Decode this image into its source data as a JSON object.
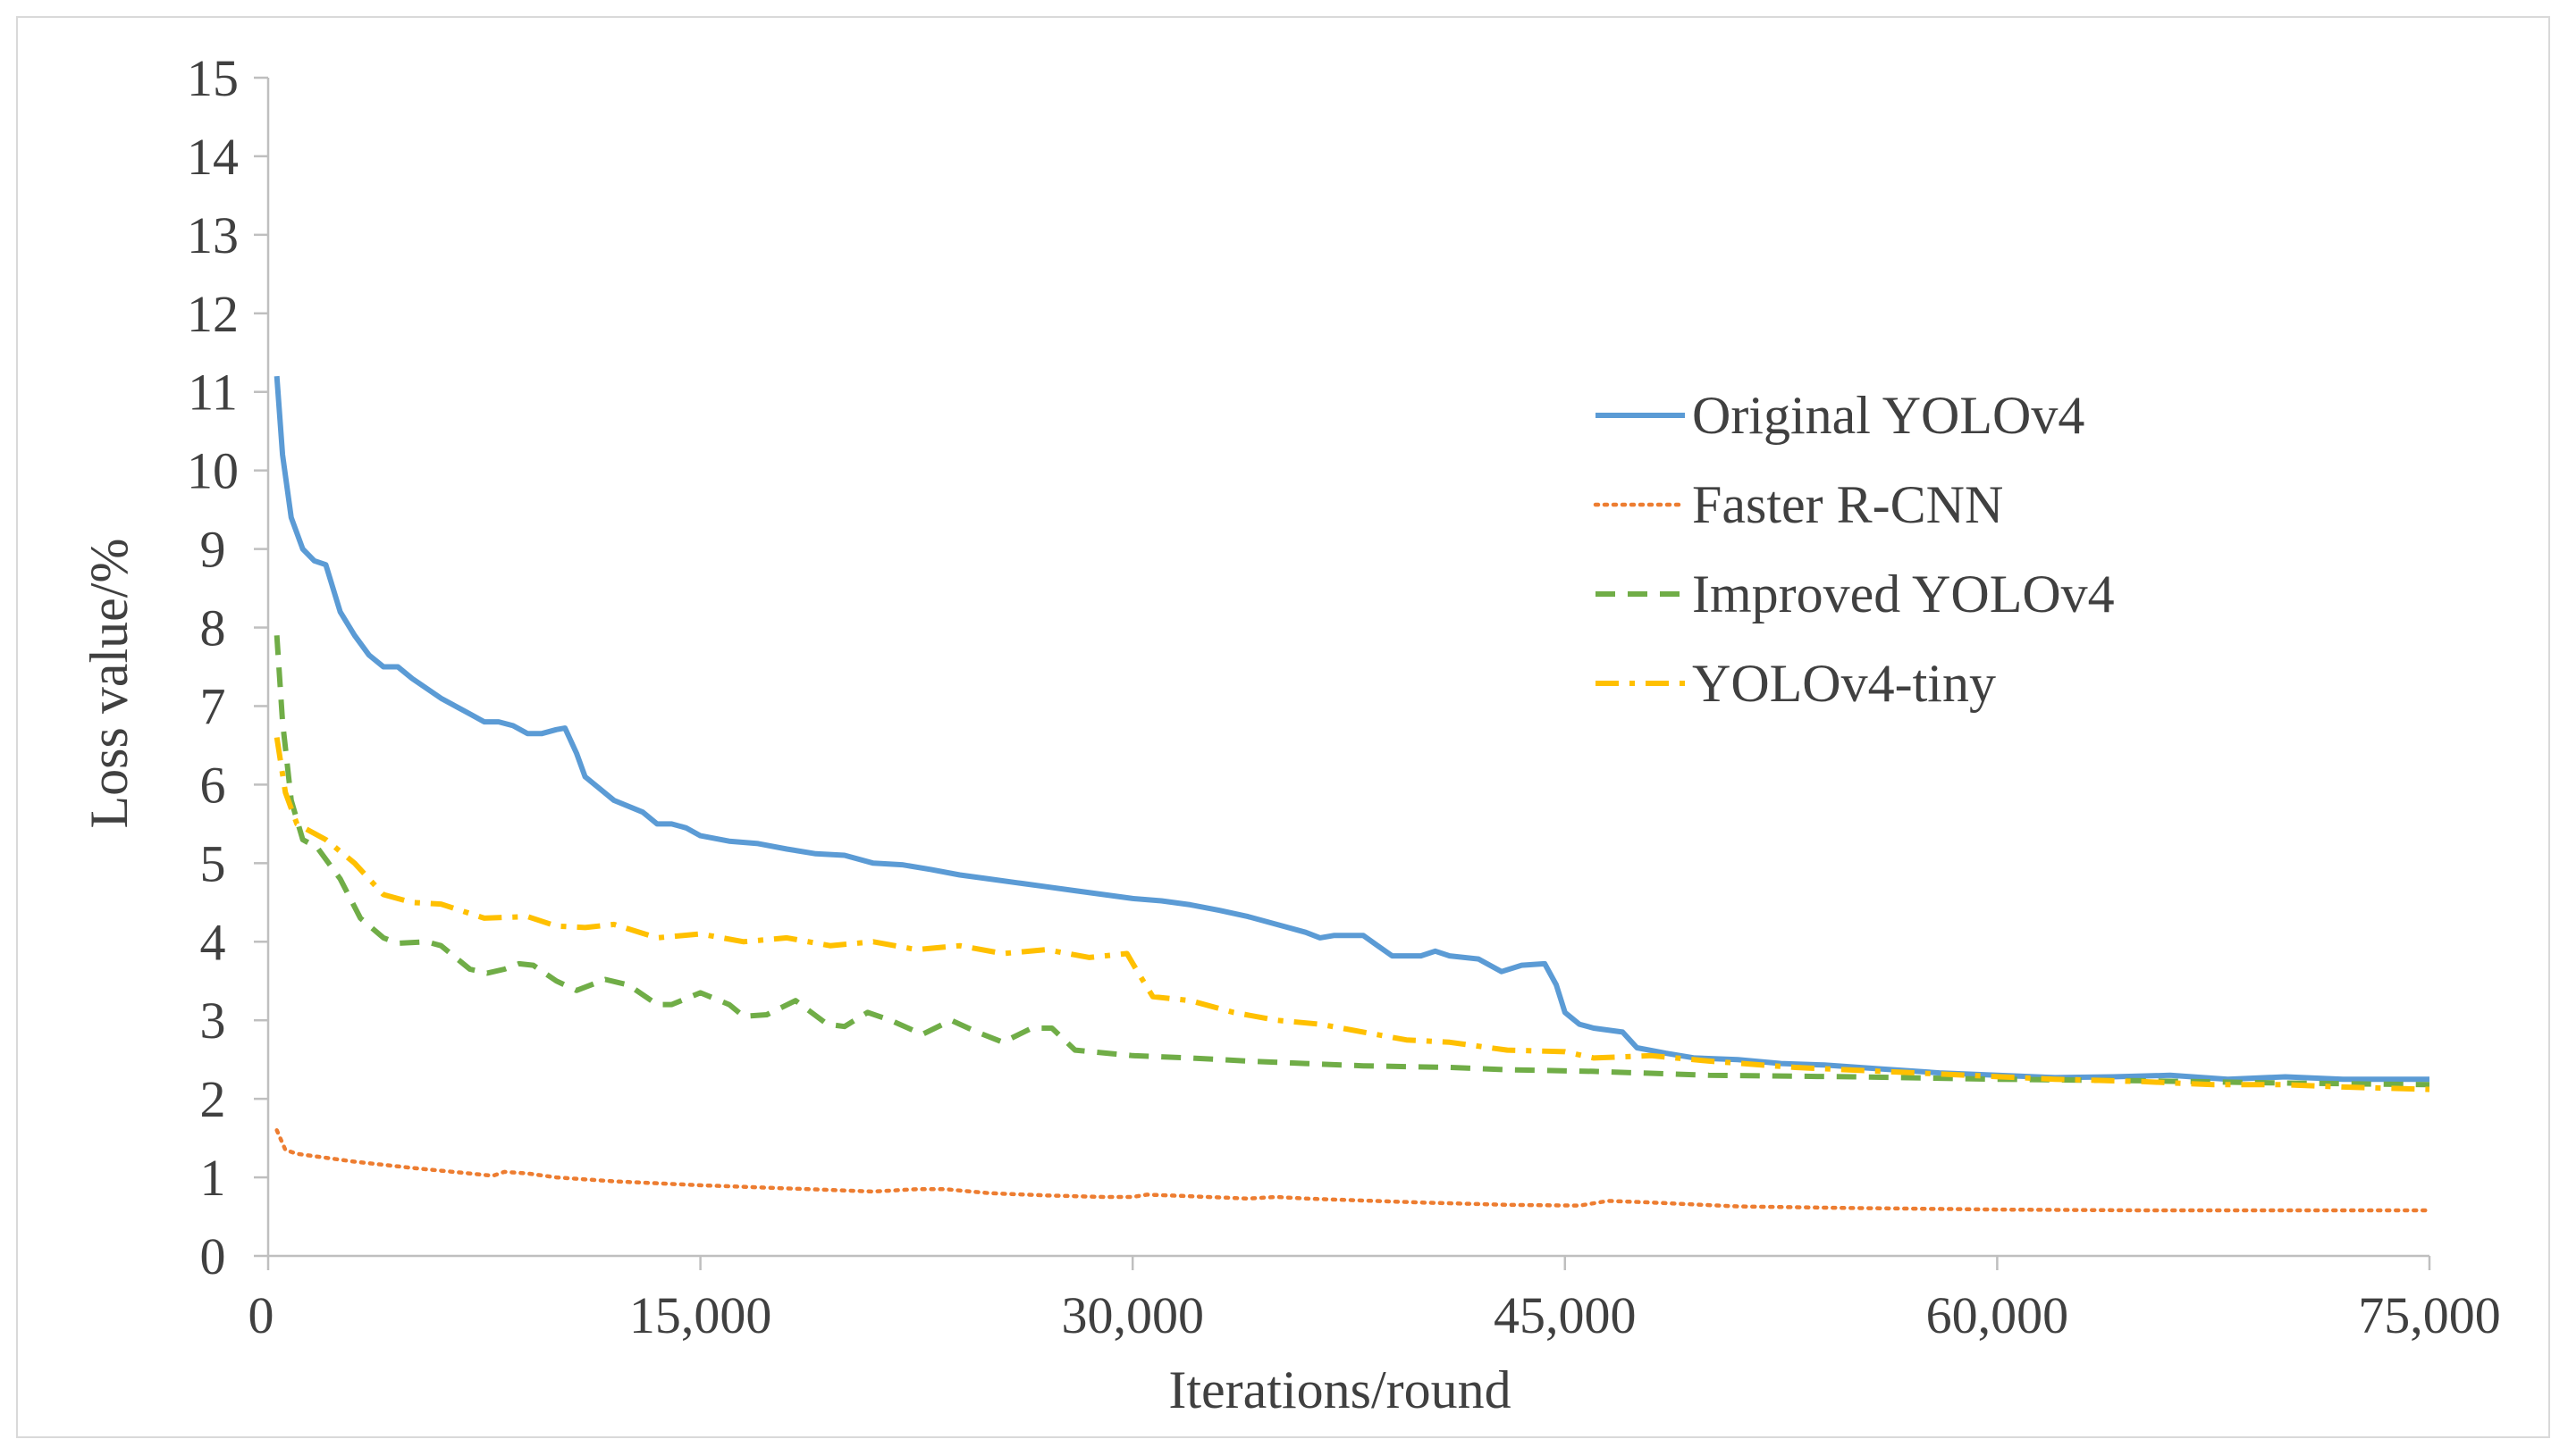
{
  "chart_data": {
    "type": "line",
    "title": "",
    "xlabel": "Iterations/round",
    "ylabel": "Loss  value/%",
    "xlim": [
      0,
      75000
    ],
    "ylim": [
      0,
      15
    ],
    "x_ticks": [
      0,
      15000,
      30000,
      45000,
      60000,
      75000
    ],
    "x_tick_labels": [
      "0",
      "15,000",
      "30,000",
      "45,000",
      "60,000",
      "75,000"
    ],
    "y_ticks": [
      0,
      1,
      2,
      3,
      4,
      5,
      6,
      7,
      8,
      9,
      10,
      11,
      12,
      13,
      14,
      15
    ],
    "y_tick_labels": [
      "0",
      "1",
      "2",
      "3",
      "4",
      "5",
      "6",
      "7",
      "8",
      "9",
      "10",
      "11",
      "12",
      "13",
      "14",
      "15"
    ],
    "grid": false,
    "legend_position": "right",
    "series": [
      {
        "name": "Original YOLOv4",
        "color": "#5b9bd5",
        "style": "solid",
        "points": [
          [
            300,
            11.2
          ],
          [
            500,
            10.2
          ],
          [
            800,
            9.4
          ],
          [
            1200,
            9.0
          ],
          [
            1600,
            8.85
          ],
          [
            2000,
            8.8
          ],
          [
            2500,
            8.2
          ],
          [
            3000,
            7.9
          ],
          [
            3500,
            7.65
          ],
          [
            4000,
            7.5
          ],
          [
            4500,
            7.5
          ],
          [
            5000,
            7.35
          ],
          [
            6000,
            7.1
          ],
          [
            7000,
            6.9
          ],
          [
            7500,
            6.8
          ],
          [
            8000,
            6.8
          ],
          [
            8500,
            6.75
          ],
          [
            9000,
            6.65
          ],
          [
            9500,
            6.65
          ],
          [
            10000,
            6.7
          ],
          [
            10300,
            6.72
          ],
          [
            10700,
            6.4
          ],
          [
            11000,
            6.1
          ],
          [
            11500,
            5.95
          ],
          [
            12000,
            5.8
          ],
          [
            13000,
            5.65
          ],
          [
            13500,
            5.5
          ],
          [
            14000,
            5.5
          ],
          [
            14500,
            5.45
          ],
          [
            15000,
            5.35
          ],
          [
            16000,
            5.28
          ],
          [
            17000,
            5.25
          ],
          [
            18000,
            5.18
          ],
          [
            19000,
            5.12
          ],
          [
            20000,
            5.1
          ],
          [
            21000,
            5.0
          ],
          [
            22000,
            4.98
          ],
          [
            23000,
            4.92
          ],
          [
            24000,
            4.85
          ],
          [
            25000,
            4.8
          ],
          [
            26000,
            4.75
          ],
          [
            27000,
            4.7
          ],
          [
            28000,
            4.65
          ],
          [
            29000,
            4.6
          ],
          [
            30000,
            4.55
          ],
          [
            31000,
            4.52
          ],
          [
            32000,
            4.47
          ],
          [
            33000,
            4.4
          ],
          [
            34000,
            4.32
          ],
          [
            35000,
            4.22
          ],
          [
            36000,
            4.12
          ],
          [
            36500,
            4.05
          ],
          [
            37000,
            4.08
          ],
          [
            38000,
            4.08
          ],
          [
            38500,
            3.95
          ],
          [
            39000,
            3.82
          ],
          [
            40000,
            3.82
          ],
          [
            40500,
            3.88
          ],
          [
            41000,
            3.82
          ],
          [
            42000,
            3.78
          ],
          [
            42800,
            3.62
          ],
          [
            43500,
            3.7
          ],
          [
            44300,
            3.72
          ],
          [
            44700,
            3.45
          ],
          [
            45000,
            3.1
          ],
          [
            45500,
            2.95
          ],
          [
            46000,
            2.9
          ],
          [
            47000,
            2.85
          ],
          [
            47500,
            2.65
          ],
          [
            48500,
            2.58
          ],
          [
            49500,
            2.52
          ],
          [
            51000,
            2.5
          ],
          [
            52500,
            2.45
          ],
          [
            54000,
            2.43
          ],
          [
            56000,
            2.38
          ],
          [
            58000,
            2.33
          ],
          [
            60000,
            2.3
          ],
          [
            62000,
            2.27
          ],
          [
            64000,
            2.28
          ],
          [
            66000,
            2.3
          ],
          [
            68000,
            2.25
          ],
          [
            70000,
            2.28
          ],
          [
            72000,
            2.25
          ],
          [
            73500,
            2.25
          ],
          [
            75000,
            2.25
          ]
        ]
      },
      {
        "name": "Faster R-CNN",
        "color": "#ed7d31",
        "style": "dotted",
        "points": [
          [
            300,
            1.6
          ],
          [
            600,
            1.35
          ],
          [
            1000,
            1.3
          ],
          [
            2000,
            1.25
          ],
          [
            3000,
            1.2
          ],
          [
            5000,
            1.12
          ],
          [
            7000,
            1.05
          ],
          [
            7800,
            1.02
          ],
          [
            8200,
            1.07
          ],
          [
            9000,
            1.05
          ],
          [
            10000,
            1.0
          ],
          [
            12000,
            0.95
          ],
          [
            15000,
            0.9
          ],
          [
            18000,
            0.86
          ],
          [
            21000,
            0.82
          ],
          [
            22500,
            0.85
          ],
          [
            23500,
            0.85
          ],
          [
            25000,
            0.8
          ],
          [
            27000,
            0.77
          ],
          [
            29000,
            0.75
          ],
          [
            30000,
            0.75
          ],
          [
            30500,
            0.78
          ],
          [
            32000,
            0.76
          ],
          [
            34000,
            0.73
          ],
          [
            35000,
            0.75
          ],
          [
            36000,
            0.73
          ],
          [
            40000,
            0.68
          ],
          [
            43000,
            0.65
          ],
          [
            45500,
            0.64
          ],
          [
            46500,
            0.7
          ],
          [
            48000,
            0.68
          ],
          [
            51000,
            0.63
          ],
          [
            55000,
            0.61
          ],
          [
            60000,
            0.59
          ],
          [
            65000,
            0.58
          ],
          [
            70000,
            0.58
          ],
          [
            75000,
            0.58
          ]
        ]
      },
      {
        "name": "Improved YOLOv4",
        "color": "#70ad47",
        "style": "dashed",
        "points": [
          [
            300,
            7.9
          ],
          [
            500,
            6.8
          ],
          [
            800,
            5.8
          ],
          [
            1200,
            5.3
          ],
          [
            1700,
            5.2
          ],
          [
            2500,
            4.8
          ],
          [
            3200,
            4.3
          ],
          [
            4000,
            4.05
          ],
          [
            4500,
            3.98
          ],
          [
            5500,
            4.0
          ],
          [
            6000,
            3.95
          ],
          [
            7000,
            3.65
          ],
          [
            7600,
            3.6
          ],
          [
            8200,
            3.65
          ],
          [
            8700,
            3.72
          ],
          [
            9200,
            3.7
          ],
          [
            10000,
            3.5
          ],
          [
            10700,
            3.38
          ],
          [
            11700,
            3.52
          ],
          [
            12500,
            3.45
          ],
          [
            13500,
            3.2
          ],
          [
            14000,
            3.2
          ],
          [
            15000,
            3.35
          ],
          [
            16000,
            3.2
          ],
          [
            16500,
            3.05
          ],
          [
            17300,
            3.07
          ],
          [
            18300,
            3.25
          ],
          [
            19400,
            2.95
          ],
          [
            20000,
            2.92
          ],
          [
            20800,
            3.1
          ],
          [
            21600,
            3.0
          ],
          [
            22700,
            2.82
          ],
          [
            23700,
            3.0
          ],
          [
            24600,
            2.85
          ],
          [
            25500,
            2.72
          ],
          [
            26500,
            2.9
          ],
          [
            27200,
            2.9
          ],
          [
            28000,
            2.62
          ],
          [
            30000,
            2.55
          ],
          [
            32000,
            2.52
          ],
          [
            34000,
            2.48
          ],
          [
            36000,
            2.45
          ],
          [
            38000,
            2.42
          ],
          [
            41000,
            2.4
          ],
          [
            43000,
            2.37
          ],
          [
            46000,
            2.35
          ],
          [
            50000,
            2.3
          ],
          [
            55000,
            2.28
          ],
          [
            60000,
            2.25
          ],
          [
            65000,
            2.23
          ],
          [
            70000,
            2.2
          ],
          [
            75000,
            2.18
          ]
        ]
      },
      {
        "name": "YOLOv4-tiny",
        "color": "#ffc000",
        "style": "dashdot",
        "points": [
          [
            300,
            6.6
          ],
          [
            600,
            5.9
          ],
          [
            1000,
            5.5
          ],
          [
            2000,
            5.3
          ],
          [
            3000,
            5.0
          ],
          [
            4000,
            4.6
          ],
          [
            5000,
            4.5
          ],
          [
            6000,
            4.48
          ],
          [
            7500,
            4.3
          ],
          [
            9000,
            4.32
          ],
          [
            10000,
            4.2
          ],
          [
            11000,
            4.18
          ],
          [
            12000,
            4.22
          ],
          [
            13500,
            4.05
          ],
          [
            15000,
            4.1
          ],
          [
            16500,
            4.0
          ],
          [
            18000,
            4.05
          ],
          [
            19500,
            3.95
          ],
          [
            21000,
            4.0
          ],
          [
            22500,
            3.9
          ],
          [
            24000,
            3.95
          ],
          [
            25500,
            3.85
          ],
          [
            27000,
            3.9
          ],
          [
            28500,
            3.8
          ],
          [
            29800,
            3.85
          ],
          [
            30200,
            3.6
          ],
          [
            30700,
            3.3
          ],
          [
            32000,
            3.25
          ],
          [
            33500,
            3.1
          ],
          [
            35000,
            3.0
          ],
          [
            36500,
            2.95
          ],
          [
            38000,
            2.85
          ],
          [
            39500,
            2.75
          ],
          [
            41000,
            2.72
          ],
          [
            43000,
            2.62
          ],
          [
            45000,
            2.6
          ],
          [
            46000,
            2.52
          ],
          [
            48000,
            2.55
          ],
          [
            50000,
            2.48
          ],
          [
            53000,
            2.4
          ],
          [
            56000,
            2.35
          ],
          [
            59000,
            2.3
          ],
          [
            62000,
            2.25
          ],
          [
            65000,
            2.22
          ],
          [
            67500,
            2.18
          ],
          [
            70000,
            2.18
          ],
          [
            72000,
            2.15
          ],
          [
            75000,
            2.12
          ]
        ]
      }
    ]
  }
}
